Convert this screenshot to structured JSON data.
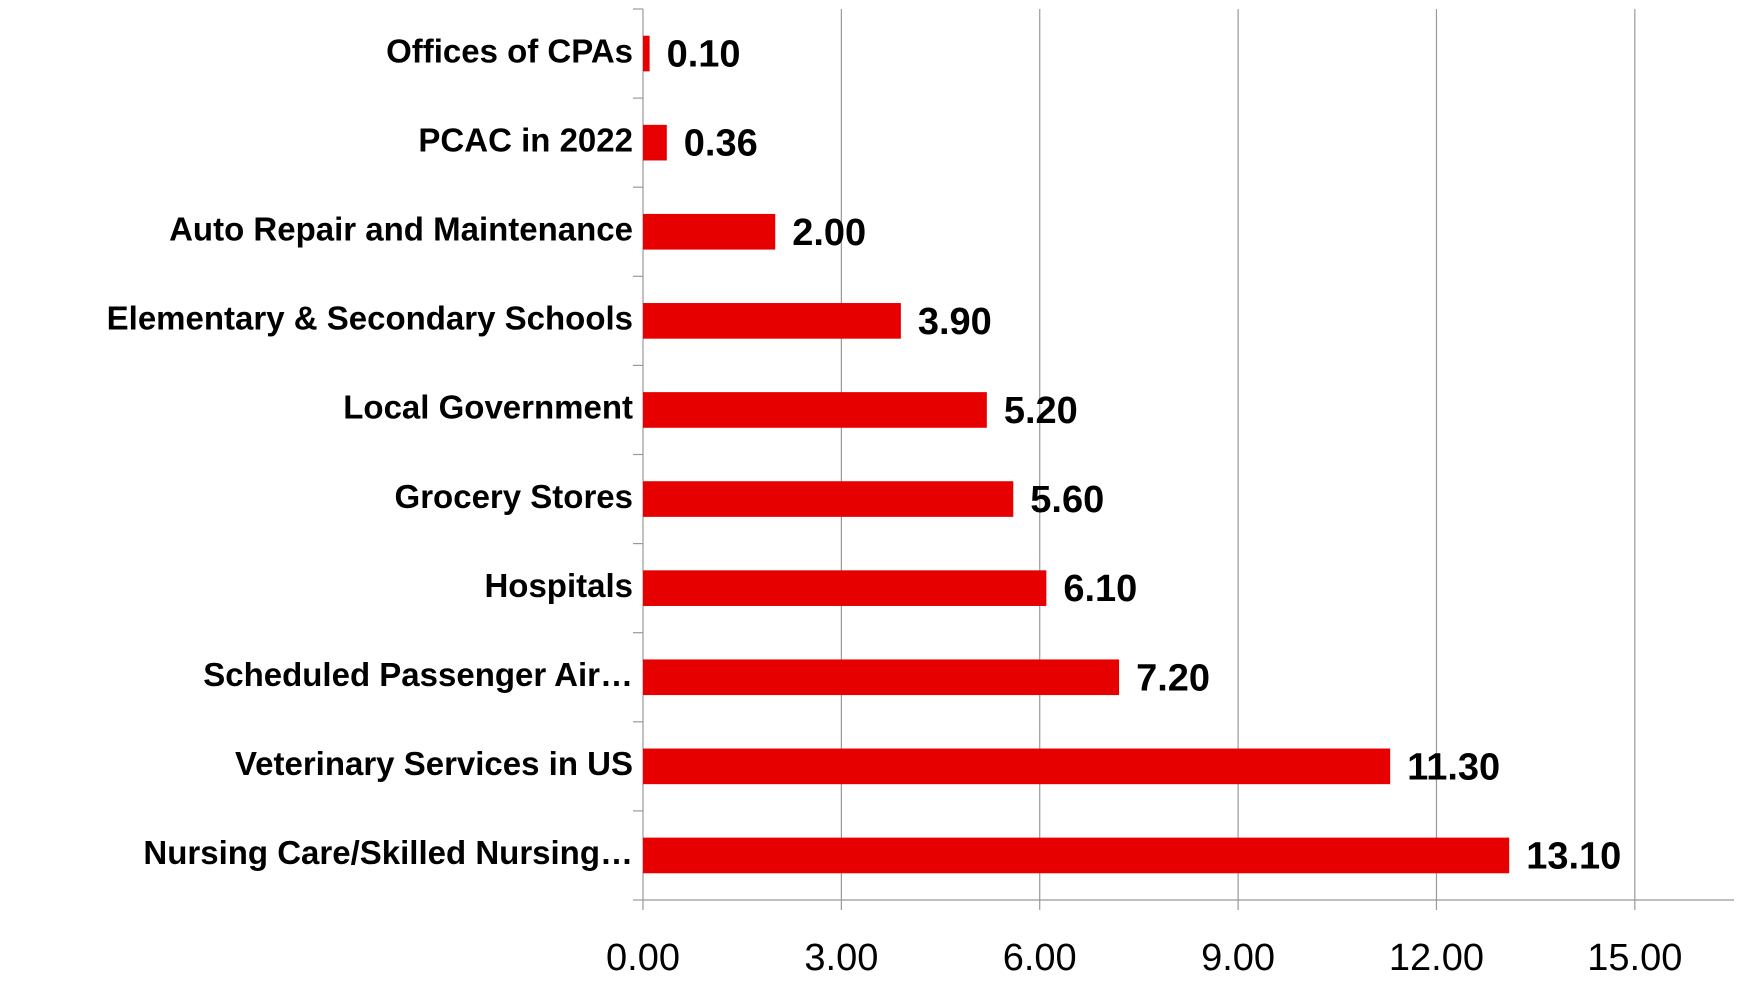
{
  "chart_data": {
    "type": "hbar",
    "categories": [
      "Offices of CPAs",
      "PCAC in 2022",
      "Auto Repair and Maintenance",
      "Elementary & Secondary Schools",
      "Local Government",
      "Grocery Stores",
      "Hospitals",
      "Scheduled Passenger Air…",
      "Veterinary Services in US",
      "Nursing Care/Skilled Nursing…"
    ],
    "values": [
      0.1,
      0.36,
      2,
      3.9,
      5.2,
      5.6,
      6.1,
      7.2,
      11.3,
      13.1
    ],
    "value_labels": [
      "0.10",
      "0.36",
      "2.00",
      "3.90",
      "5.20",
      "5.60",
      "6.10",
      "7.20",
      "11.30",
      "13.10"
    ],
    "color": "#e60000",
    "xlim": [
      0,
      16.5
    ],
    "xticks": [
      {
        "value": 0,
        "label": "0.00"
      },
      {
        "value": 3,
        "label": "3.00"
      },
      {
        "value": 6,
        "label": "6.00"
      },
      {
        "value": 9,
        "label": "9.00"
      },
      {
        "value": 12,
        "label": "12.00"
      },
      {
        "value": 15,
        "label": "15.00"
      }
    ],
    "grid": true
  }
}
